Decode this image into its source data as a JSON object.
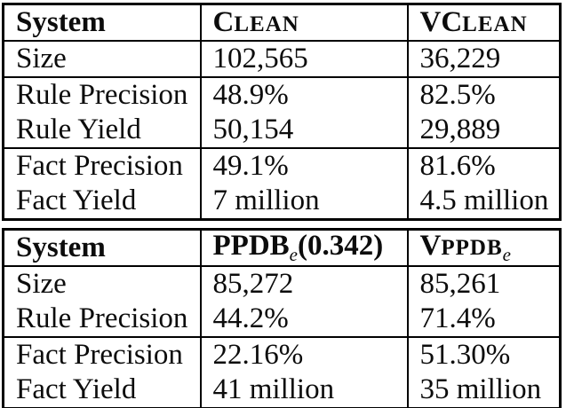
{
  "colors": {
    "background": "#ffffff",
    "border": "#000000",
    "text": "#0c0c0c"
  },
  "table1": {
    "header": {
      "system": "System",
      "clean": {
        "cap": "C",
        "small": "LEAN"
      },
      "vclean": {
        "cap": "VC",
        "small": "LEAN"
      }
    },
    "rows": [
      {
        "label": "Size",
        "col2": "102,565",
        "col3": "36,229"
      },
      {
        "label": "Rule Precision",
        "col2": "48.9%",
        "col3": "82.5%"
      },
      {
        "label": "Rule Yield",
        "col2": "50,154",
        "col3": "29,889"
      },
      {
        "label": "Fact Precision",
        "col2": "49.1%",
        "col3": "81.6%"
      },
      {
        "label": "Fact Yield",
        "col2": "7 million",
        "col3": "4.5 million"
      }
    ]
  },
  "table2": {
    "header": {
      "system": "System",
      "ppdb": {
        "main": "PPDB",
        "sub": "e",
        "paren": "(0.342)"
      },
      "vppdb": {
        "cap": "V",
        "small": "PPDB",
        "sub": "e"
      }
    },
    "rows": [
      {
        "label": "Size",
        "col2": "85,272",
        "col3": "85,261"
      },
      {
        "label": "Rule Precision",
        "col2": "44.2%",
        "col3": "71.4%"
      },
      {
        "label": "Fact Precision",
        "col2": "22.16%",
        "col3": "51.30%"
      },
      {
        "label": "Fact Yield",
        "col2": "41 million",
        "col3": "35 million"
      }
    ]
  }
}
